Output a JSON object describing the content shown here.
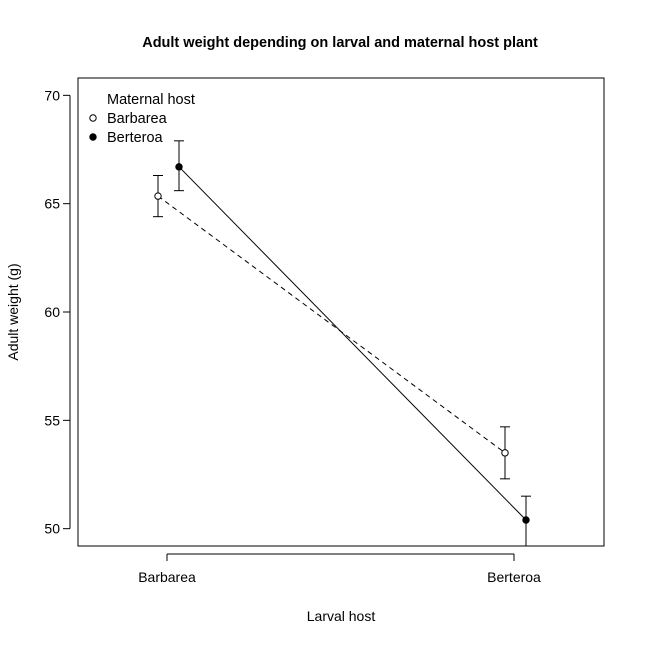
{
  "chart_data": {
    "type": "line",
    "title": "Adult weight depending on larval and maternal host plant",
    "xlabel": "Larval host",
    "ylabel": "Adult weight (g)",
    "categories": [
      "Barbarea",
      "Berteroa"
    ],
    "ylim": [
      49.2,
      70.8
    ],
    "yticks": [
      50,
      55,
      60,
      65,
      70
    ],
    "grid": false,
    "legend": {
      "title": "Maternal host",
      "position": "top-left",
      "items": [
        "Barbarea",
        "Berteroa"
      ]
    },
    "series": [
      {
        "name": "Barbarea",
        "marker": "open-circle",
        "line": "dashed",
        "values": [
          65.35,
          53.5
        ],
        "error_low": [
          64.4,
          52.3
        ],
        "error_high": [
          66.3,
          54.7
        ]
      },
      {
        "name": "Berteroa",
        "marker": "filled-circle",
        "line": "solid",
        "values": [
          66.7,
          50.4
        ],
        "error_low": [
          65.6,
          49.2
        ],
        "error_high": [
          67.9,
          51.5
        ]
      }
    ]
  }
}
